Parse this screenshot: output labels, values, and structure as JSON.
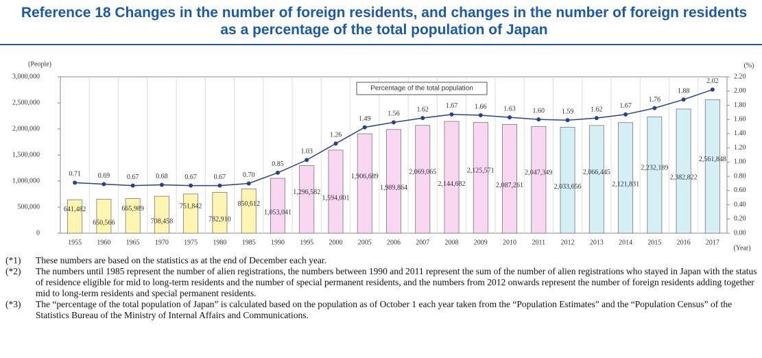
{
  "chart_data": {
    "type": "bar",
    "title": "Reference 18  Changes in the number of foreign residents, and changes in the number of foreign residents as a percentage of the total population of Japan",
    "y_label": "(People)",
    "y2_label": "(%)",
    "x_label": "(Year)",
    "categories": [
      "1955",
      "1960",
      "1965",
      "1970",
      "1975",
      "1980",
      "1985",
      "1990",
      "1995",
      "2000",
      "2005",
      "2006",
      "2007",
      "2008",
      "2009",
      "2010",
      "2011",
      "2012",
      "2013",
      "2014",
      "2015",
      "2016",
      "2017"
    ],
    "series": [
      {
        "type": "bar",
        "colors": [
          "#fdf5b0",
          "#fdf5b0",
          "#fdf5b0",
          "#fdf5b0",
          "#fdf5b0",
          "#fdf5b0",
          "#fdf5b0",
          "#f9d7f0",
          "#f9d7f0",
          "#f9d7f0",
          "#f9d7f0",
          "#f9d7f0",
          "#f9d7f0",
          "#f9d7f0",
          "#f9d7f0",
          "#f9d7f0",
          "#f9d7f0",
          "#d4f0f5",
          "#d4f0f5",
          "#d4f0f5",
          "#d4f0f5",
          "#d4f0f5",
          "#d4f0f5"
        ],
        "values": [
          641482,
          650566,
          665989,
          708458,
          751842,
          782910,
          850612,
          1053041,
          1296582,
          1594001,
          1906689,
          1989864,
          2069065,
          2144682,
          2125571,
          2087261,
          2047349,
          2033656,
          2066445,
          2121831,
          2232189,
          2382822,
          2561848
        ],
        "value_labels": [
          "641,482",
          "650,566",
          "665,989",
          "708,458",
          "751,842",
          "782,910",
          "850,612",
          "1,053,041",
          "1,296,582",
          "1,594,001",
          "1,906,689",
          "1,989,864",
          "2,069,065",
          "2,144,682",
          "2,125,571",
          "2,087,261",
          "2,047,349",
          "2,033,656",
          "2,066,445",
          "2,121,831",
          "2,232,189",
          "2,382,822",
          "2,561,848"
        ]
      },
      {
        "type": "line",
        "name": "Percentage of the total population",
        "color": "#2a3f8f",
        "axis": "y2",
        "values": [
          0.71,
          0.69,
          0.67,
          0.68,
          0.67,
          0.67,
          0.7,
          0.85,
          1.03,
          1.26,
          1.49,
          1.56,
          1.62,
          1.67,
          1.66,
          1.63,
          1.6,
          1.59,
          1.62,
          1.67,
          1.76,
          1.88,
          2.02
        ],
        "value_labels": [
          "0.71",
          "0.69",
          "0.67",
          "0.68",
          "0.67",
          "0.67",
          "0.70",
          "0.85",
          "1.03",
          "1.26",
          "1.49",
          "1.56",
          "1.62",
          "1.67",
          "1.66",
          "1.63",
          "1.60",
          "1.59",
          "1.62",
          "1.67",
          "1.76",
          "1.88",
          "2.02"
        ]
      }
    ],
    "ylim": [
      0,
      3000000
    ],
    "yticks": [
      0,
      {
        "value": 500000,
        "label": "500,000"
      },
      {
        "value": 1000000,
        "label": "1,000,000"
      },
      {
        "value": 1500000,
        "label": "1,500,000"
      },
      {
        "value": 2000000,
        "label": "2,000,000"
      },
      {
        "value": 2500000,
        "label": "2,500,000"
      },
      {
        "value": 3000000,
        "label": "3,000,000"
      }
    ],
    "y2lim": [
      0,
      2.2
    ],
    "y2ticks": [
      {
        "value": 0,
        "label": "0.00"
      },
      {
        "value": 0.2,
        "label": "0.20"
      },
      {
        "value": 0.4,
        "label": "0.40"
      },
      {
        "value": 0.6,
        "label": "0.60"
      },
      {
        "value": 0.8,
        "label": "0.80"
      },
      {
        "value": 1,
        "label": "1.00"
      },
      {
        "value": 1.2,
        "label": "1.20"
      },
      {
        "value": 1.4,
        "label": "1.40"
      },
      {
        "value": 1.6,
        "label": "1.60"
      },
      {
        "value": 1.8,
        "label": "1.80"
      },
      {
        "value": 2,
        "label": "2.00"
      },
      {
        "value": 2.2,
        "label": "2.20"
      }
    ]
  },
  "notes": [
    {
      "marker": "(*1)",
      "text": "These numbers are based on the statistics as at the end of December each year."
    },
    {
      "marker": "(*2)",
      "text": "The numbers until 1985 represent the number of alien registrations, the numbers between 1990 and 2011 represent the sum of the number of alien registrations who stayed in Japan with the status of residence eligible for mid to long-term residents and the number of special permanent residents, and the numbers from 2012 onwards represent the number of foreign residents adding together mid to long-term residents and special permanent residents."
    },
    {
      "marker": "(*3)",
      "text": "The “percentage of the total population of Japan” is calculated based on the population as of October 1 each year taken from the “Population Estimates” and the “Population Census” of the Statistics Bureau of the Ministry of Internal Affairs and Communications."
    }
  ]
}
